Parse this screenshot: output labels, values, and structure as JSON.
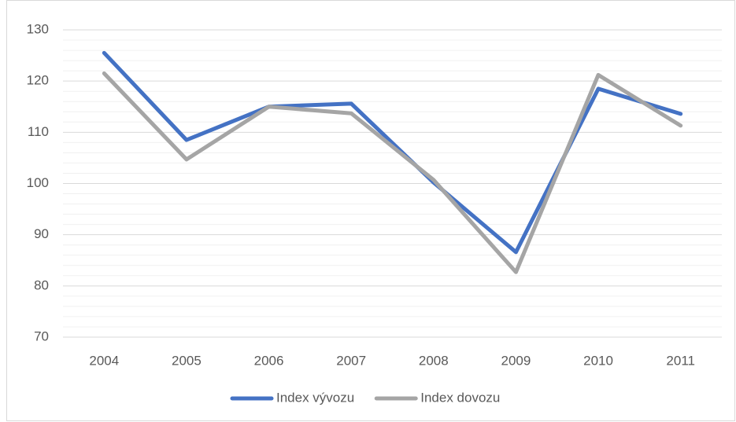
{
  "chart_data": {
    "type": "line",
    "categories": [
      "2004",
      "2005",
      "2006",
      "2007",
      "2008",
      "2009",
      "2010",
      "2011"
    ],
    "series": [
      {
        "name": "Index vývozu",
        "color": "#4472c4",
        "values": [
          125.5,
          108.5,
          115,
          115.6,
          100.2,
          86.6,
          118.5,
          113.6
        ]
      },
      {
        "name": "Index dovozu",
        "color": "#a5a5a5",
        "values": [
          121.5,
          104.7,
          115,
          113.7,
          100.7,
          82.7,
          121.2,
          111.3
        ]
      }
    ],
    "ylim": [
      70,
      130
    ],
    "yticks": [
      70,
      80,
      90,
      100,
      110,
      120,
      130
    ],
    "minor_yticks": [
      72,
      74,
      76,
      78,
      82,
      84,
      86,
      88,
      92,
      94,
      96,
      98,
      102,
      104,
      106,
      108,
      112,
      114,
      116,
      118,
      122,
      124,
      126,
      128
    ],
    "grid": true,
    "legend": "bottom"
  }
}
